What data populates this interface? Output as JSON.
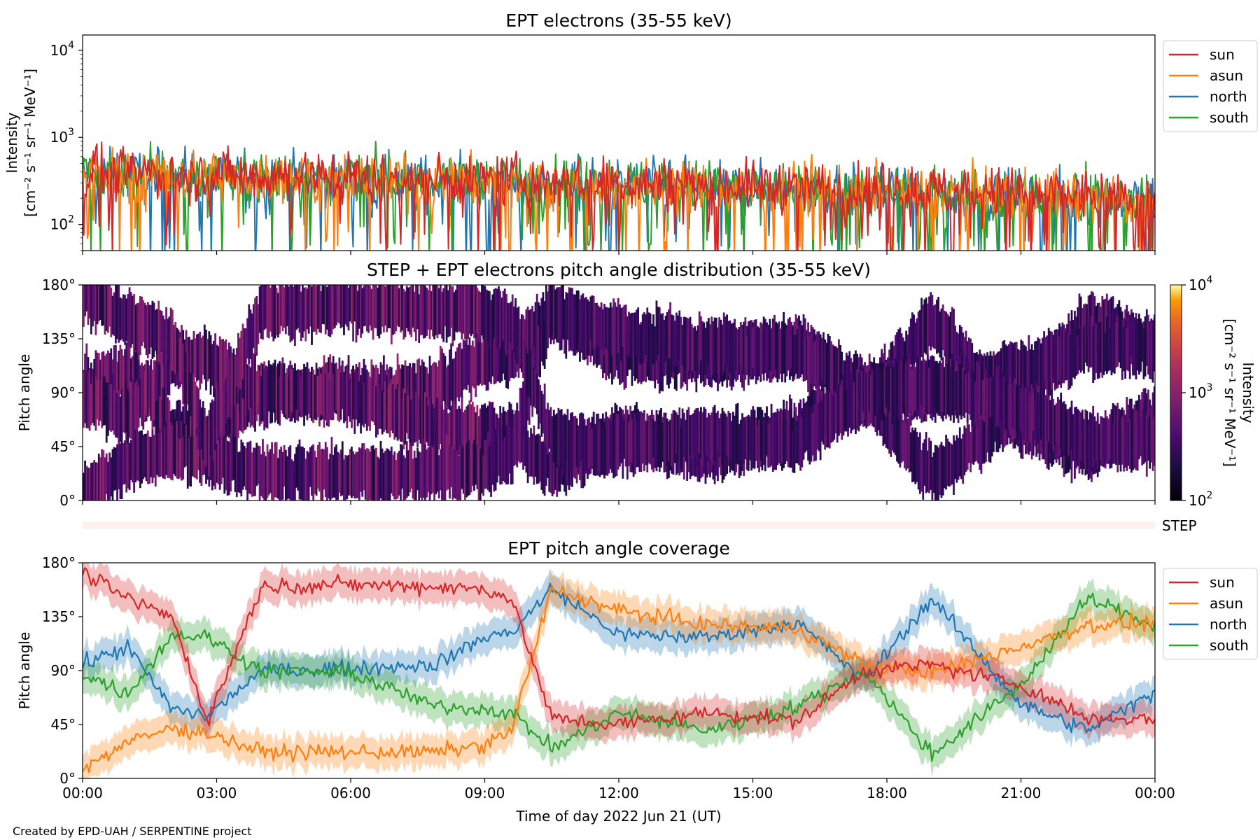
{
  "colors": {
    "sun": "#d62728",
    "asun": "#ff7f0e",
    "north": "#1f77b4",
    "south": "#2ca02c",
    "step_bar": "#fff0ea"
  },
  "chart_data": [
    {
      "type": "line",
      "title": "EPT electrons (35-55 keV)",
      "ylabel": "Intensity",
      "ylabel_units": "[cm⁻² s⁻¹ sr⁻¹ MeV⁻¹]",
      "yscale": "log",
      "ylim": [
        50,
        15000
      ],
      "yticks": [
        {
          "value": 100,
          "base": "10",
          "exp": "2"
        },
        {
          "value": 1000,
          "base": "10",
          "exp": "3"
        },
        {
          "value": 10000,
          "base": "10",
          "exp": "4"
        }
      ],
      "xlim_hours": [
        0,
        24
      ],
      "legend_position": "outside-right-top",
      "series": [
        {
          "name": "sun",
          "typical_intensity_start": 400,
          "typical_intensity_end": 200
        },
        {
          "name": "asun",
          "typical_intensity_start": 380,
          "typical_intensity_end": 190
        },
        {
          "name": "north",
          "typical_intensity_start": 370,
          "typical_intensity_end": 185
        },
        {
          "name": "south",
          "typical_intensity_start": 390,
          "typical_intensity_end": 190
        }
      ]
    },
    {
      "type": "heatmap",
      "title": "STEP + EPT electrons pitch angle distribution (35-55 keV)",
      "ylabel": "Pitch angle",
      "ylim": [
        0,
        180
      ],
      "yticks": [
        "0°",
        "45°",
        "90°",
        "135°",
        "180°"
      ],
      "xlim_hours": [
        0,
        24
      ],
      "colorbar": {
        "label": "Intensity",
        "units": "[cm⁻² s⁻¹ sr⁻¹ MeV⁻¹]",
        "scale": "log",
        "range": [
          100,
          10000
        ],
        "ticks": [
          {
            "value": 100,
            "base": "10",
            "exp": "2"
          },
          {
            "value": 1000,
            "base": "10",
            "exp": "3"
          },
          {
            "value": 10000,
            "base": "10",
            "exp": "4"
          }
        ],
        "colormap": "inferno"
      }
    },
    {
      "type": "bar",
      "label": "STEP"
    },
    {
      "type": "line",
      "title": "EPT pitch angle coverage",
      "ylabel": "Pitch angle",
      "ylim": [
        0,
        180
      ],
      "yticks": [
        "0°",
        "45°",
        "90°",
        "135°",
        "180°"
      ],
      "xlabel": "Time of day 2022 Jun 21 (UT)",
      "xticks": [
        "00:00",
        "03:00",
        "06:00",
        "09:00",
        "12:00",
        "15:00",
        "18:00",
        "21:00",
        "00:00"
      ],
      "legend_position": "outside-right-top",
      "series": [
        {
          "name": "sun",
          "hours": [
            0,
            1,
            2,
            2.8,
            4,
            6,
            7.9,
            9,
            9.6,
            10.5,
            12,
            14,
            16,
            17.5,
            19,
            21,
            22.5,
            24
          ],
          "values": [
            172,
            150,
            135,
            48,
            160,
            162,
            160,
            158,
            150,
            50,
            45,
            55,
            48,
            90,
            95,
            78,
            50,
            50
          ]
        },
        {
          "name": "asun",
          "hours": [
            0,
            1,
            2,
            2.8,
            4,
            6,
            7.9,
            9,
            9.6,
            10.5,
            12,
            14,
            16,
            17.5,
            19,
            21,
            22.5,
            24
          ],
          "values": [
            8,
            30,
            42,
            38,
            22,
            22,
            22,
            28,
            40,
            158,
            140,
            128,
            125,
            95,
            88,
            110,
            128,
            130
          ]
        },
        {
          "name": "north",
          "hours": [
            0,
            1,
            2,
            2.8,
            4,
            6,
            7.9,
            9,
            9.6,
            10.5,
            12,
            14,
            16,
            17.5,
            19,
            21,
            22.5,
            24
          ],
          "values": [
            95,
            110,
            58,
            52,
            90,
            92,
            95,
            118,
            122,
            158,
            120,
            118,
            130,
            82,
            150,
            62,
            40,
            72
          ]
        },
        {
          "name": "south",
          "hours": [
            0,
            1,
            2,
            2.8,
            4,
            6,
            7.9,
            9,
            9.6,
            10.5,
            12,
            14,
            16,
            17.5,
            19,
            21,
            22.5,
            24
          ],
          "values": [
            88,
            70,
            120,
            118,
            90,
            88,
            60,
            58,
            55,
            25,
            55,
            40,
            60,
            90,
            20,
            78,
            150,
            128
          ]
        }
      ]
    }
  ],
  "footer": "Created by EPD-UAH / SERPENTINE project"
}
